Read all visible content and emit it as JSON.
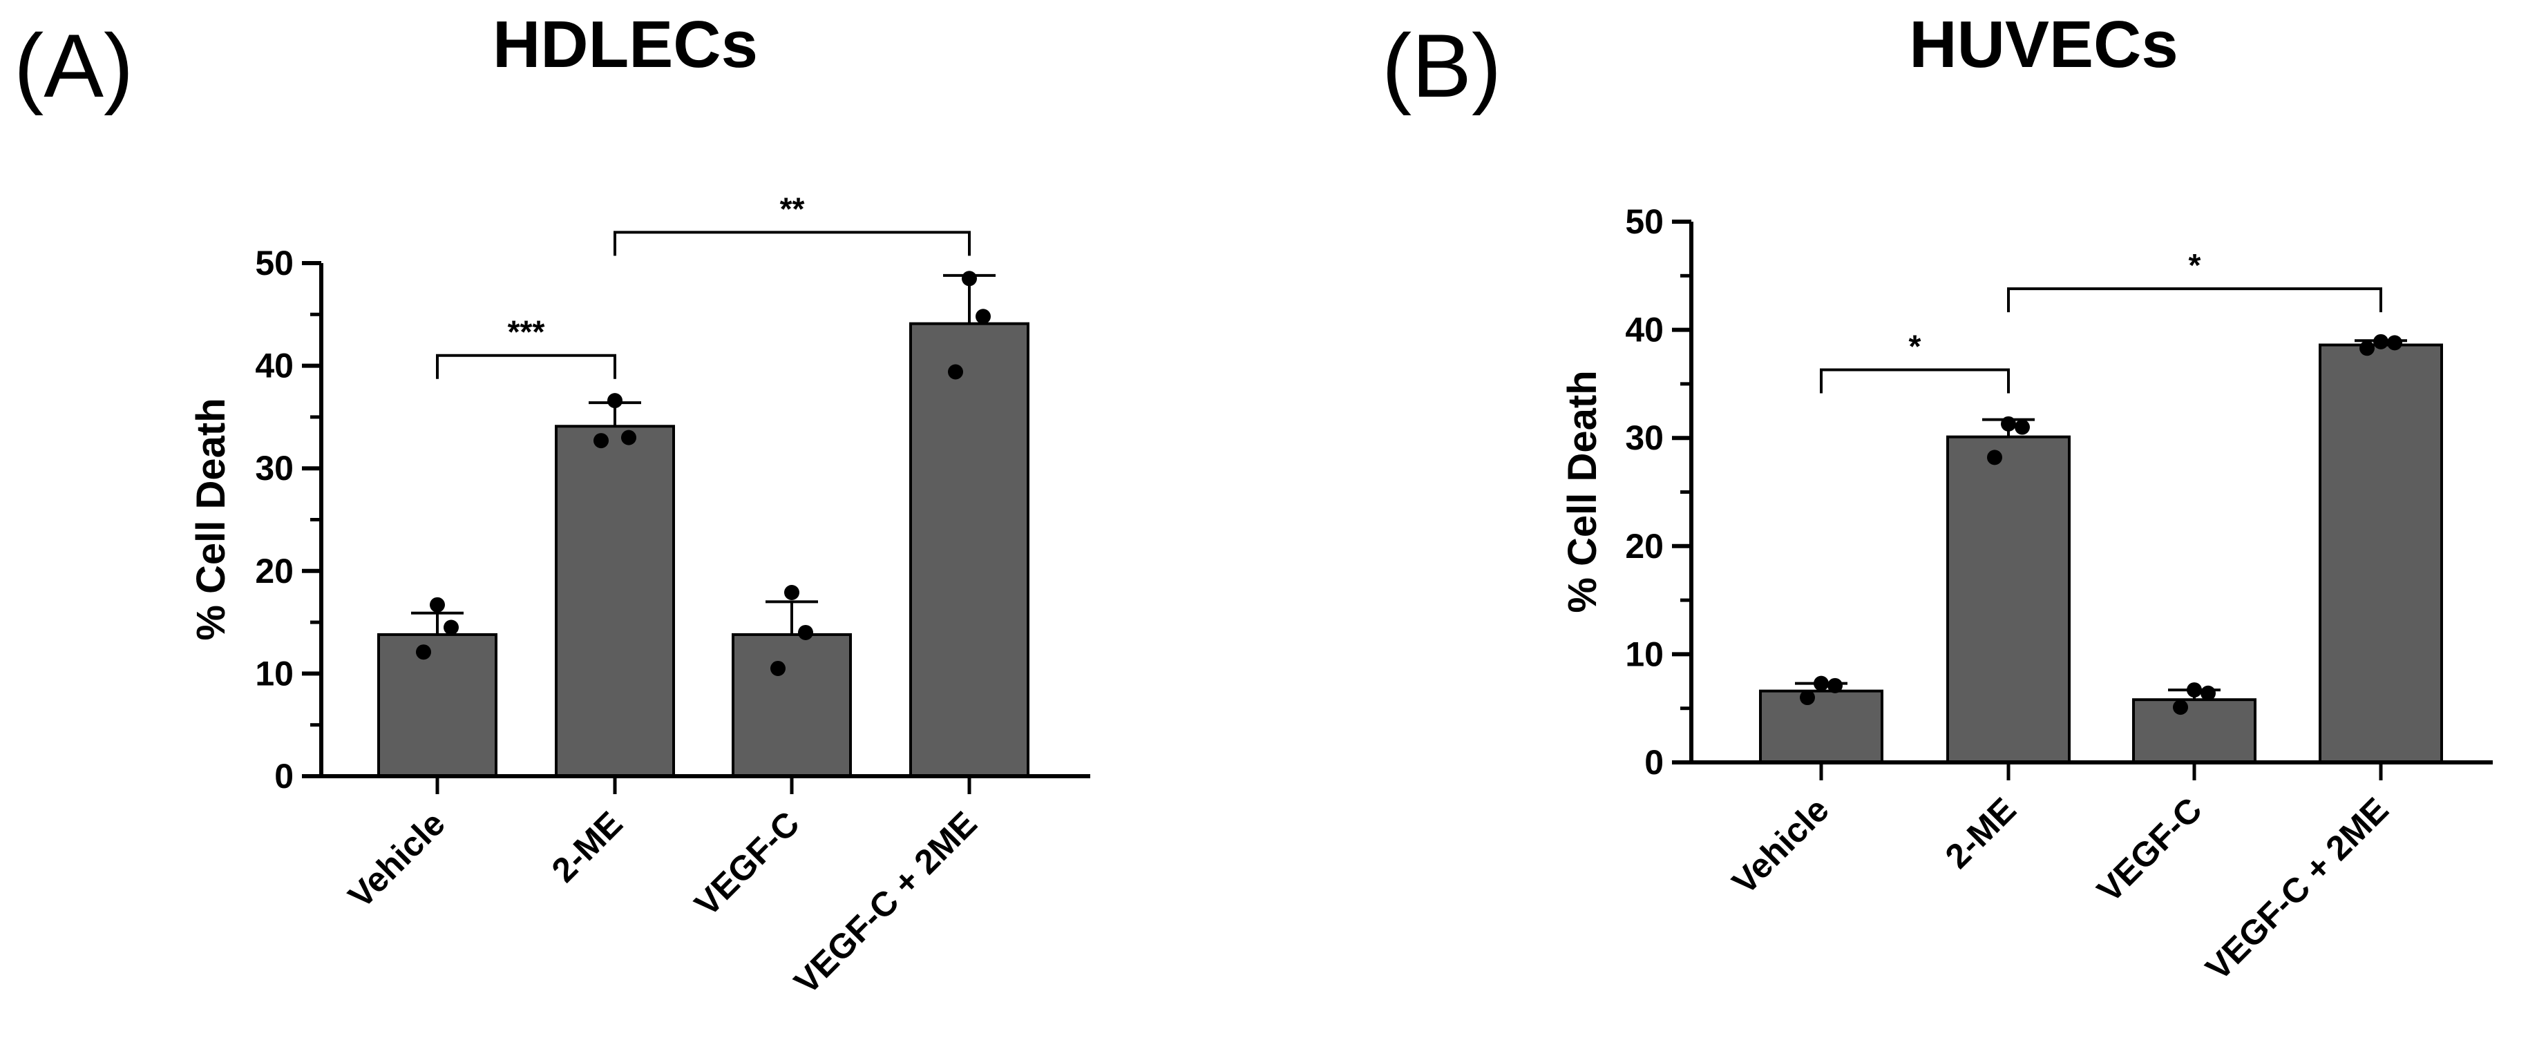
{
  "chart_data": [
    {
      "type": "bar",
      "panel_label": "(A)",
      "title": "HDLECs",
      "xlabel": "",
      "ylabel": "% Cell Death",
      "ylim": [
        0,
        50
      ],
      "yticks": [
        0,
        10,
        20,
        30,
        40,
        50
      ],
      "categories": [
        "Vehicle",
        "2-ME",
        "VEGF-C",
        "VEGF-C + 2ME"
      ],
      "values": [
        13.8,
        34.1,
        13.8,
        44.1
      ],
      "error": [
        2.1,
        2.3,
        3.2,
        4.7
      ],
      "points": [
        [
          12.1,
          14.5,
          16.7
        ],
        [
          32.7,
          33.0,
          36.6
        ],
        [
          10.5,
          14.0,
          17.9
        ],
        [
          39.4,
          44.8,
          48.5
        ]
      ],
      "significance": [
        {
          "from": 0,
          "to": 1,
          "label": "***",
          "y": 41.0
        },
        {
          "from": 1,
          "to": 3,
          "label": "**",
          "y": 53.0
        }
      ],
      "colors": {
        "bar": "#5e5e5e",
        "axis": "#000000"
      }
    },
    {
      "type": "bar",
      "panel_label": "(B)",
      "title": "HUVECs",
      "xlabel": "",
      "ylabel": "% Cell Death",
      "ylim": [
        0,
        50
      ],
      "yticks": [
        0,
        10,
        20,
        30,
        40,
        50
      ],
      "categories": [
        "Vehicle",
        "2-ME",
        "VEGF-C",
        "VEGF-C + 2ME"
      ],
      "values": [
        6.6,
        30.1,
        5.8,
        38.6
      ],
      "error": [
        0.7,
        1.6,
        0.9,
        0.4
      ],
      "points": [
        [
          6.0,
          7.1,
          7.3
        ],
        [
          28.2,
          31.0,
          31.3
        ],
        [
          5.1,
          6.4,
          6.7
        ],
        [
          38.3,
          38.8,
          38.9
        ]
      ],
      "significance": [
        {
          "from": 0,
          "to": 1,
          "label": "*",
          "y": 36.3
        },
        {
          "from": 1,
          "to": 3,
          "label": "*",
          "y": 43.8
        }
      ],
      "colors": {
        "bar": "#5e5e5e",
        "axis": "#000000"
      }
    }
  ]
}
